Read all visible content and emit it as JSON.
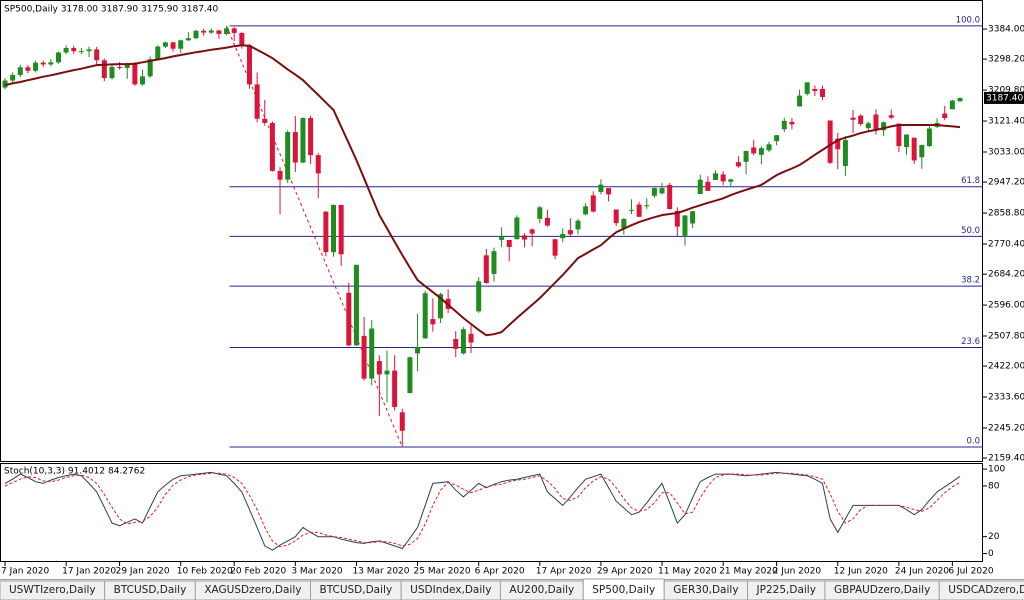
{
  "chart_data": [
    {
      "type": "candlestick",
      "title": "SP500,Daily  3178.00 3187.90 3175.90 3187.40",
      "categories": [
        "7 Jan 2020",
        null,
        null,
        null,
        null,
        null,
        null,
        null,
        "17 Jan 2020",
        null,
        null,
        null,
        null,
        null,
        null,
        "29 Jan 2020",
        null,
        null,
        null,
        null,
        null,
        null,
        null,
        "10 Feb 2020",
        null,
        null,
        null,
        null,
        null,
        null,
        "20 Feb 2020",
        null,
        null,
        null,
        null,
        null,
        null,
        null,
        "3 Mar 2020",
        null,
        null,
        null,
        null,
        null,
        null,
        null,
        "13 Mar 2020",
        null,
        null,
        null,
        null,
        null,
        null,
        null,
        "25 Mar 2020",
        null,
        null,
        null,
        null,
        null,
        null,
        null,
        "6 Apr 2020",
        null,
        null,
        null,
        null,
        null,
        null,
        null,
        "17 Apr 2020",
        null,
        null,
        null,
        null,
        null,
        null,
        null,
        "29 Apr 2020",
        null,
        null,
        null,
        null,
        null,
        null,
        null,
        "11 May 2020",
        null,
        null,
        null,
        null,
        null,
        null,
        null,
        "21 May 2020",
        null,
        null,
        null,
        null,
        null,
        null,
        "2 Jun 2020",
        null,
        null,
        null,
        null,
        null,
        null,
        null,
        "12 Jun 2020",
        null,
        null,
        null,
        null,
        null,
        null,
        null,
        "24 Jun 2020",
        null,
        null,
        null,
        null,
        null,
        null,
        "6 Jul 2020",
        null
      ],
      "open": [
        3217,
        3237,
        3253,
        3275,
        3265,
        3288,
        3283,
        3289,
        3317,
        3330,
        3321,
        3321,
        3326,
        3295,
        3244,
        3276,
        3273,
        3284,
        3226,
        3249,
        3298,
        3334,
        3346,
        3328,
        3352,
        3358,
        3379,
        3374,
        3380,
        3370,
        3386,
        3373,
        3338,
        3226,
        3128,
        3116,
        2979,
        2954,
        3090,
        3003,
        3130,
        3024,
        2863,
        2747,
        2882,
        2631,
        2481,
        2508,
        2386,
        2436,
        2398,
        2409,
        2290,
        2345,
        2458,
        2501,
        2556,
        2558,
        2614,
        2499,
        2458,
        2514,
        2578,
        2738,
        2685,
        2782,
        2782,
        2784,
        2795,
        2812,
        2842,
        2845,
        2784,
        2787,
        2810,
        2812,
        2855,
        2909,
        2919,
        2930,
        2869,
        2815,
        2868,
        2883,
        2878,
        2908,
        2915,
        2939,
        2865,
        2794,
        2829,
        2913,
        2948,
        2953,
        2969,
        2948,
        3004,
        3005,
        3046,
        3025,
        3038,
        3064,
        3098,
        3119,
        3163,
        3199,
        3213,
        3213,
        3123,
        3071,
        2993,
        3131,
        3137,
        3101,
        3140,
        3095,
        3138,
        3114,
        3047,
        3074,
        3018,
        3050,
        3105,
        3143,
        3155,
        3178
      ],
      "high": [
        3244,
        3260,
        3282,
        3282,
        3294,
        3294,
        3298,
        3320,
        3337,
        3337,
        3330,
        3334,
        3333,
        3300,
        3285,
        3290,
        3288,
        3290,
        3268,
        3306,
        3338,
        3348,
        3348,
        3354,
        3375,
        3382,
        3385,
        3386,
        3382,
        3393,
        3390,
        3375,
        3342,
        3260,
        3182,
        3120,
        2990,
        3095,
        3136,
        3132,
        3137,
        3030,
        2864,
        2883,
        2882,
        2660,
        2711,
        2562,
        2553,
        2453,
        2466,
        2453,
        2300,
        2449,
        2571,
        2637,
        2615,
        2631,
        2641,
        2522,
        2533,
        2538,
        2676,
        2756,
        2760,
        2818,
        2782,
        2852,
        2801,
        2815,
        2879,
        2868,
        2785,
        2815,
        2844,
        2842,
        2887,
        2921,
        2955,
        2930,
        2869,
        2844,
        2898,
        2891,
        2901,
        2932,
        2945,
        2945,
        2875,
        2852,
        2865,
        2968,
        2964,
        2981,
        2978,
        2957,
        3021,
        3037,
        3068,
        3050,
        3063,
        3082,
        3131,
        3130,
        3211,
        3232,
        3223,
        3223,
        3123,
        3088,
        3079,
        3153,
        3141,
        3120,
        3155,
        3120,
        3154,
        3115,
        3083,
        3074,
        3054,
        3112,
        3129,
        3165,
        3182,
        3187.9
      ],
      "low": [
        3212,
        3230,
        3247,
        3258,
        3260,
        3276,
        3278,
        3285,
        3312,
        3314,
        3312,
        3304,
        3282,
        3235,
        3240,
        3268,
        3242,
        3222,
        3222,
        3245,
        3295,
        3330,
        3320,
        3316,
        3350,
        3355,
        3365,
        3370,
        3356,
        3366,
        3350,
        3328,
        3214,
        3118,
        3108,
        2977,
        2855,
        2945,
        2976,
        3001,
        2999,
        2901,
        2735,
        2734,
        2708,
        2478,
        2480,
        2380,
        2367,
        2280,
        2319,
        2295,
        2191,
        2344,
        2407,
        2500,
        2520,
        2545,
        2573,
        2447,
        2455,
        2459,
        2574,
        2657,
        2663,
        2762,
        2721,
        2784,
        2761,
        2764,
        2830,
        2820,
        2727,
        2775,
        2791,
        2798,
        2852,
        2860,
        2912,
        2892,
        2822,
        2797,
        2856,
        2847,
        2870,
        2902,
        2912,
        2869,
        2793,
        2766,
        2816,
        2913,
        2922,
        2953,
        2938,
        2933,
        2988,
        2969,
        3024,
        2998,
        3033,
        3052,
        3090,
        3098,
        3163,
        3194,
        3193,
        3181,
        2999,
        2984,
        2965,
        3087,
        3108,
        3093,
        3083,
        3079,
        3127,
        3033,
        3025,
        2999,
        2985,
        3047,
        3101,
        3124,
        3155,
        3175.9
      ],
      "close": [
        3237,
        3253,
        3275,
        3265,
        3288,
        3283,
        3289,
        3317,
        3330,
        3321,
        3321,
        3326,
        3295,
        3244,
        3276,
        3273,
        3284,
        3226,
        3249,
        3298,
        3334,
        3346,
        3328,
        3352,
        3358,
        3379,
        3374,
        3380,
        3370,
        3386,
        3373,
        3338,
        3226,
        3128,
        3116,
        2979,
        2954,
        3090,
        3003,
        3130,
        3024,
        2972,
        2747,
        2882,
        2741,
        2481,
        2711,
        2386,
        2529,
        2398,
        2409,
        2305,
        2237,
        2447,
        2476,
        2630,
        2541,
        2627,
        2585,
        2471,
        2527,
        2489,
        2664,
        2659,
        2750,
        2790,
        2762,
        2846,
        2783,
        2800,
        2875,
        2823,
        2737,
        2799,
        2798,
        2837,
        2878,
        2863,
        2940,
        2912,
        2830,
        2842,
        2868,
        2848,
        2881,
        2930,
        2930,
        2870,
        2820,
        2852,
        2864,
        2954,
        2922,
        2972,
        2949,
        2955,
        2992,
        3036,
        3029,
        3044,
        3055,
        3081,
        3122,
        3112,
        3194,
        3232,
        3207,
        3190,
        3002,
        3041,
        3067,
        3125,
        3113,
        3115,
        3098,
        3118,
        3131,
        3050,
        3083,
        3009,
        3053,
        3100,
        3116,
        3130,
        3180,
        3187.4
      ],
      "up_color": "#1e8c1e",
      "down_color": "#dc143c",
      "moving_average": {
        "color": "#7a0f0f",
        "values": [
          3224,
          3229,
          3233,
          3238,
          3243,
          3248,
          3252,
          3257,
          3262,
          3267,
          3271,
          3276,
          3281,
          3282,
          3283,
          3284,
          3284,
          3285,
          3289,
          3293,
          3297,
          3301,
          3306,
          3310,
          3314,
          3318,
          3321,
          3325,
          3328,
          3331,
          3335,
          3338,
          3336,
          3325,
          3313,
          3301,
          3285,
          3269,
          3254,
          3238,
          3217,
          3196,
          3174,
          3153,
          3105,
          3058,
          3010,
          2958,
          2905,
          2853,
          2815,
          2777,
          2739,
          2703,
          2667,
          2650,
          2633,
          2616,
          2597,
          2578,
          2559,
          2542,
          2525,
          2510,
          2513,
          2519,
          2539,
          2559,
          2578,
          2597,
          2616,
          2638,
          2660,
          2682,
          2706,
          2730,
          2742,
          2755,
          2767,
          2786,
          2804,
          2814,
          2824,
          2833,
          2840,
          2847,
          2853,
          2856,
          2859,
          2866,
          2874,
          2881,
          2888,
          2894,
          2901,
          2910,
          2918,
          2925,
          2932,
          2939,
          2953,
          2967,
          2977,
          2986,
          2996,
          3010,
          3025,
          3039,
          3053,
          3067,
          3074,
          3080,
          3087,
          3092,
          3096,
          3101,
          3106,
          3110,
          3110,
          3110,
          3110,
          3110,
          3110,
          3108,
          3106,
          3104
        ]
      },
      "fibonacci": {
        "color": "#26268c",
        "trend_color": "#dc143c",
        "levels": [
          {
            "value": 3393,
            "label": "100.0"
          },
          {
            "value": 2934,
            "label": "61.8"
          },
          {
            "value": 2792,
            "label": "50.0"
          },
          {
            "value": 2650,
            "label": "38.2"
          },
          {
            "value": 2475,
            "label": "23.6"
          },
          {
            "value": 2191,
            "label": "0.0"
          }
        ]
      },
      "last_price": {
        "value": 3187.4,
        "label": "3187.40"
      },
      "ylim": [
        2148,
        3467
      ],
      "yticks": [
        {
          "value": 3384,
          "label": "3384.00"
        },
        {
          "value": 3298.2,
          "label": "3298.20"
        },
        {
          "value": 3209.8,
          "label": "3209.80"
        },
        {
          "value": 3121.4,
          "label": "3121.40"
        },
        {
          "value": 3033,
          "label": "3033.00"
        },
        {
          "value": 2947.2,
          "label": "2947.20"
        },
        {
          "value": 2858.8,
          "label": "2858.80"
        },
        {
          "value": 2770.4,
          "label": "2770.40"
        },
        {
          "value": 2684.2,
          "label": "2684.20"
        },
        {
          "value": 2596,
          "label": "2596.00"
        },
        {
          "value": 2507.8,
          "label": "2507.80"
        },
        {
          "value": 2422,
          "label": "2422.00"
        },
        {
          "value": 2333.6,
          "label": "2333.60"
        },
        {
          "value": 2245.2,
          "label": "2245.20"
        },
        {
          "value": 2159.4,
          "label": "2159.40"
        }
      ]
    },
    {
      "type": "line",
      "title": "Stoch(10,3,3) 91.4012 84.2762",
      "series": [
        {
          "color": "#2a3f5f",
          "values": [
            83,
            88,
            94,
            90,
            85,
            83,
            87,
            90,
            92,
            94,
            92,
            83,
            73,
            55,
            36,
            33,
            37,
            41,
            36,
            55,
            73,
            81,
            88,
            92,
            93,
            94,
            95,
            96,
            94,
            92,
            83,
            73,
            52,
            31,
            9,
            4,
            10,
            15,
            20,
            31,
            25,
            20,
            20,
            20,
            17,
            15,
            13,
            12,
            14,
            15,
            12,
            9,
            6,
            18,
            31,
            57,
            83,
            84,
            85,
            75,
            67,
            75,
            83,
            78,
            82,
            85,
            87,
            88,
            90,
            92,
            94,
            73,
            65,
            57,
            67,
            78,
            88,
            91,
            94,
            78,
            62,
            54,
            46,
            49,
            60,
            72,
            83,
            60,
            36,
            46,
            66,
            85,
            90,
            94,
            94,
            94,
            93,
            92,
            93,
            94,
            95,
            96,
            95,
            94,
            93,
            92,
            88,
            83,
            41,
            25,
            41,
            57,
            57,
            57,
            57,
            57,
            57,
            57,
            52,
            46,
            52,
            63,
            73,
            79,
            85,
            91.4012
          ]
        },
        {
          "color": "#e02020",
          "dashed": true,
          "values": [
            80,
            84,
            88,
            91,
            90,
            86,
            85,
            87,
            90,
            92,
            93,
            90,
            83,
            70,
            55,
            41,
            35,
            37,
            38,
            44,
            55,
            70,
            81,
            87,
            91,
            93,
            94,
            95,
            95,
            94,
            90,
            83,
            69,
            52,
            31,
            15,
            8,
            10,
            15,
            22,
            25,
            25,
            22,
            20,
            19,
            17,
            15,
            13,
            13,
            14,
            14,
            12,
            9,
            11,
            18,
            35,
            57,
            75,
            84,
            81,
            76,
            72,
            75,
            79,
            81,
            82,
            85,
            87,
            88,
            90,
            92,
            86,
            77,
            65,
            63,
            67,
            78,
            86,
            91,
            88,
            78,
            65,
            54,
            50,
            52,
            60,
            72,
            72,
            60,
            47,
            49,
            66,
            80,
            90,
            93,
            94,
            94,
            93,
            93,
            93,
            94,
            95,
            95,
            95,
            94,
            93,
            91,
            88,
            71,
            50,
            36,
            41,
            52,
            57,
            57,
            57,
            57,
            57,
            55,
            52,
            50,
            54,
            63,
            72,
            79,
            84.2762
          ]
        }
      ],
      "ylim": [
        -10,
        106
      ],
      "yticks": [
        100,
        80,
        20,
        0
      ]
    }
  ],
  "tabs": {
    "items": [
      "USWTIzero,Daily",
      "BTCUSD,Daily",
      "XAGUSDzero,Daily",
      "BTCUSD,Daily",
      "USDIndex,Daily",
      "AU200,Daily",
      "SP500,Daily",
      "GER30,Daily",
      "JP225,Daily",
      "GBPAUDzero,Daily",
      "USDCADzero,Daily"
    ],
    "active": 6
  }
}
